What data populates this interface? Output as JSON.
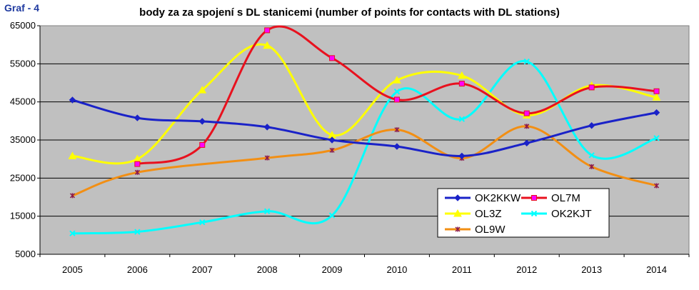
{
  "graf_label": "Graf - 4",
  "chart_data": {
    "type": "line",
    "title": "body za za spojení s DL stanicemi (number of points for contacts with DL stations)",
    "xlabel": "",
    "ylabel": "",
    "categories": [
      "2005",
      "2006",
      "2007",
      "2008",
      "2009",
      "2010",
      "2011",
      "2012",
      "2013",
      "2014"
    ],
    "ylim": [
      5000,
      65000
    ],
    "yticks": [
      5000,
      15000,
      25000,
      35000,
      45000,
      55000,
      65000
    ],
    "ytick_labels": [
      "5000",
      "15000",
      "25000",
      "35000",
      "45000",
      "55000",
      "65000"
    ],
    "grid": "horizontal",
    "legend_position": "bottom-right",
    "series": [
      {
        "name": "OK2KKW",
        "color": "#1a22c8",
        "marker": "diamond",
        "values": [
          45500,
          40800,
          39900,
          38400,
          35000,
          33300,
          30800,
          34200,
          38800,
          42200
        ]
      },
      {
        "name": "OL7M",
        "color": "#e8111e",
        "marker": "square",
        "values": [
          null,
          28700,
          33700,
          63800,
          56500,
          45600,
          49800,
          42000,
          48800,
          47800
        ]
      },
      {
        "name": "OL3Z",
        "color": "#ffff00",
        "marker": "triangle",
        "values": [
          30800,
          30000,
          48100,
          59800,
          36300,
          50700,
          51900,
          41500,
          49300,
          46200
        ]
      },
      {
        "name": "OK2KJT",
        "color": "#00ffff",
        "marker": "x",
        "values": [
          10500,
          10900,
          13400,
          16300,
          15200,
          47700,
          40500,
          55600,
          31000,
          35500
        ]
      },
      {
        "name": "OL9W",
        "color": "#f28f14",
        "marker": "star",
        "values": [
          20400,
          26500,
          null,
          30300,
          32300,
          37700,
          30200,
          38600,
          28000,
          23000
        ]
      }
    ]
  }
}
